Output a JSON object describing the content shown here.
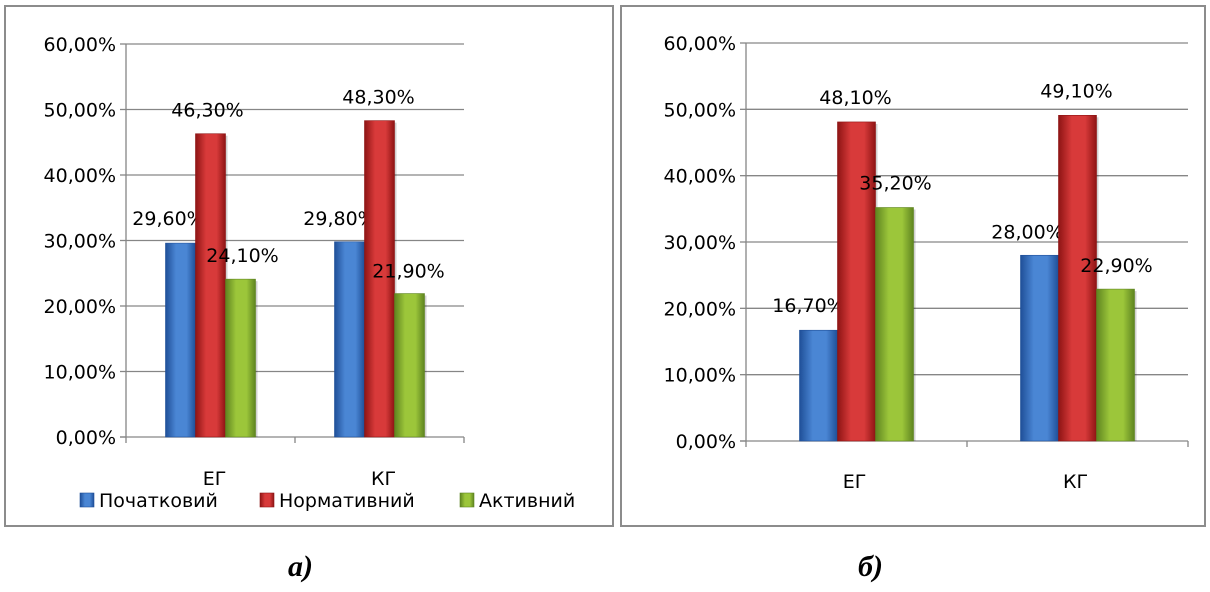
{
  "colors": {
    "series": [
      "#4a86d4",
      "#d83a3a",
      "#9cc63a"
    ],
    "series_dark": [
      "#1f4f98",
      "#8e1414",
      "#5e8420"
    ],
    "grid": "#868686",
    "text": "#000000"
  },
  "chart_data": [
    {
      "type": "bar",
      "caption": "а)",
      "categories": [
        "ЕГ",
        "КГ"
      ],
      "series": [
        {
          "name": "Початковий",
          "values": [
            29.6,
            29.8
          ]
        },
        {
          "name": "Нормативний",
          "values": [
            46.3,
            48.3
          ]
        },
        {
          "name": "Активний",
          "values": [
            24.1,
            21.9
          ]
        }
      ],
      "data_labels": [
        [
          "29,60%",
          "29,80%"
        ],
        [
          "46,30%",
          "48,30%"
        ],
        [
          "24,10%",
          "21,90%"
        ]
      ],
      "yticks": [
        "0,00%",
        "10,00%",
        "20,00%",
        "30,00%",
        "40,00%",
        "50,00%",
        "60,00%"
      ],
      "ylim": [
        0,
        60
      ],
      "grid": true,
      "legend": "bottom"
    },
    {
      "type": "bar",
      "caption": "б)",
      "categories": [
        "ЕГ",
        "КГ"
      ],
      "series": [
        {
          "name": "Початковий",
          "values": [
            16.7,
            28.0
          ]
        },
        {
          "name": "Нормативний",
          "values": [
            48.1,
            49.1
          ]
        },
        {
          "name": "Активний",
          "values": [
            35.2,
            22.9
          ]
        }
      ],
      "data_labels": [
        [
          "16,70%",
          "28,00%"
        ],
        [
          "48,10%",
          "49,10%"
        ],
        [
          "35,20%",
          "22,90%"
        ]
      ],
      "yticks": [
        "0,00%",
        "10,00%",
        "20,00%",
        "30,00%",
        "40,00%",
        "50,00%",
        "60,00%"
      ],
      "ylim": [
        0,
        60
      ],
      "grid": true,
      "legend": "none"
    }
  ]
}
